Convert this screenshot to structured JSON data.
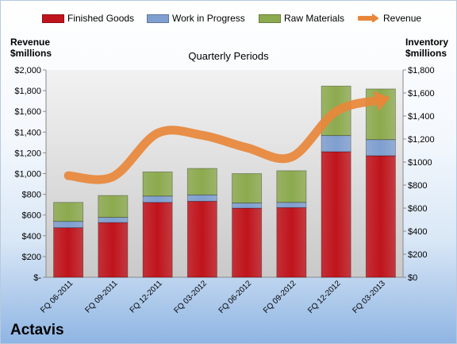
{
  "chart_data": {
    "type": "bar",
    "stacked": true,
    "title": "",
    "subtitle": "Quarterly Periods",
    "company": "Actavis",
    "left_axis_title": [
      "Revenue",
      "$millions"
    ],
    "right_axis_title": [
      "Inventory",
      "$millions"
    ],
    "categories": [
      "FQ 06-2011",
      "FQ 09-2011",
      "FQ 12-2011",
      "FQ 03-2012",
      "FQ 06-2012",
      "FQ 09-2012",
      "FQ 12-2012",
      "FQ 03-2013"
    ],
    "series": [
      {
        "name": "Finished Goods",
        "color": "#c0141c",
        "axis": "right",
        "values": [
          430,
          475,
          650,
          660,
          600,
          605,
          1090,
          1055
        ]
      },
      {
        "name": "Work in Progress",
        "color": "#7f9fd0",
        "axis": "right",
        "values": [
          55,
          45,
          55,
          55,
          45,
          45,
          140,
          140
        ]
      },
      {
        "name": "Raw Materials",
        "color": "#8caa4e",
        "axis": "right",
        "values": [
          165,
          190,
          210,
          230,
          255,
          275,
          430,
          440
        ]
      },
      {
        "name": "Revenue",
        "color": "#e8873a",
        "axis": "left",
        "type": "line",
        "values": [
          980,
          970,
          1390,
          1370,
          1250,
          1160,
          1600,
          1710
        ]
      }
    ],
    "left_axis": {
      "ylim": [
        0,
        2000
      ],
      "ticks": [
        "$-",
        "$200",
        "$400",
        "$600",
        "$800",
        "$1,000",
        "$1,200",
        "$1,400",
        "$1,600",
        "$1,800",
        "$2,000"
      ]
    },
    "right_axis": {
      "ylim": [
        0,
        1800
      ],
      "ticks": [
        "$0",
        "$200",
        "$400",
        "$600",
        "$800",
        "$1000",
        "$1,200",
        "$1,400",
        "$1,600",
        "$1,800"
      ]
    },
    "grid": false,
    "legend_position": "top"
  }
}
